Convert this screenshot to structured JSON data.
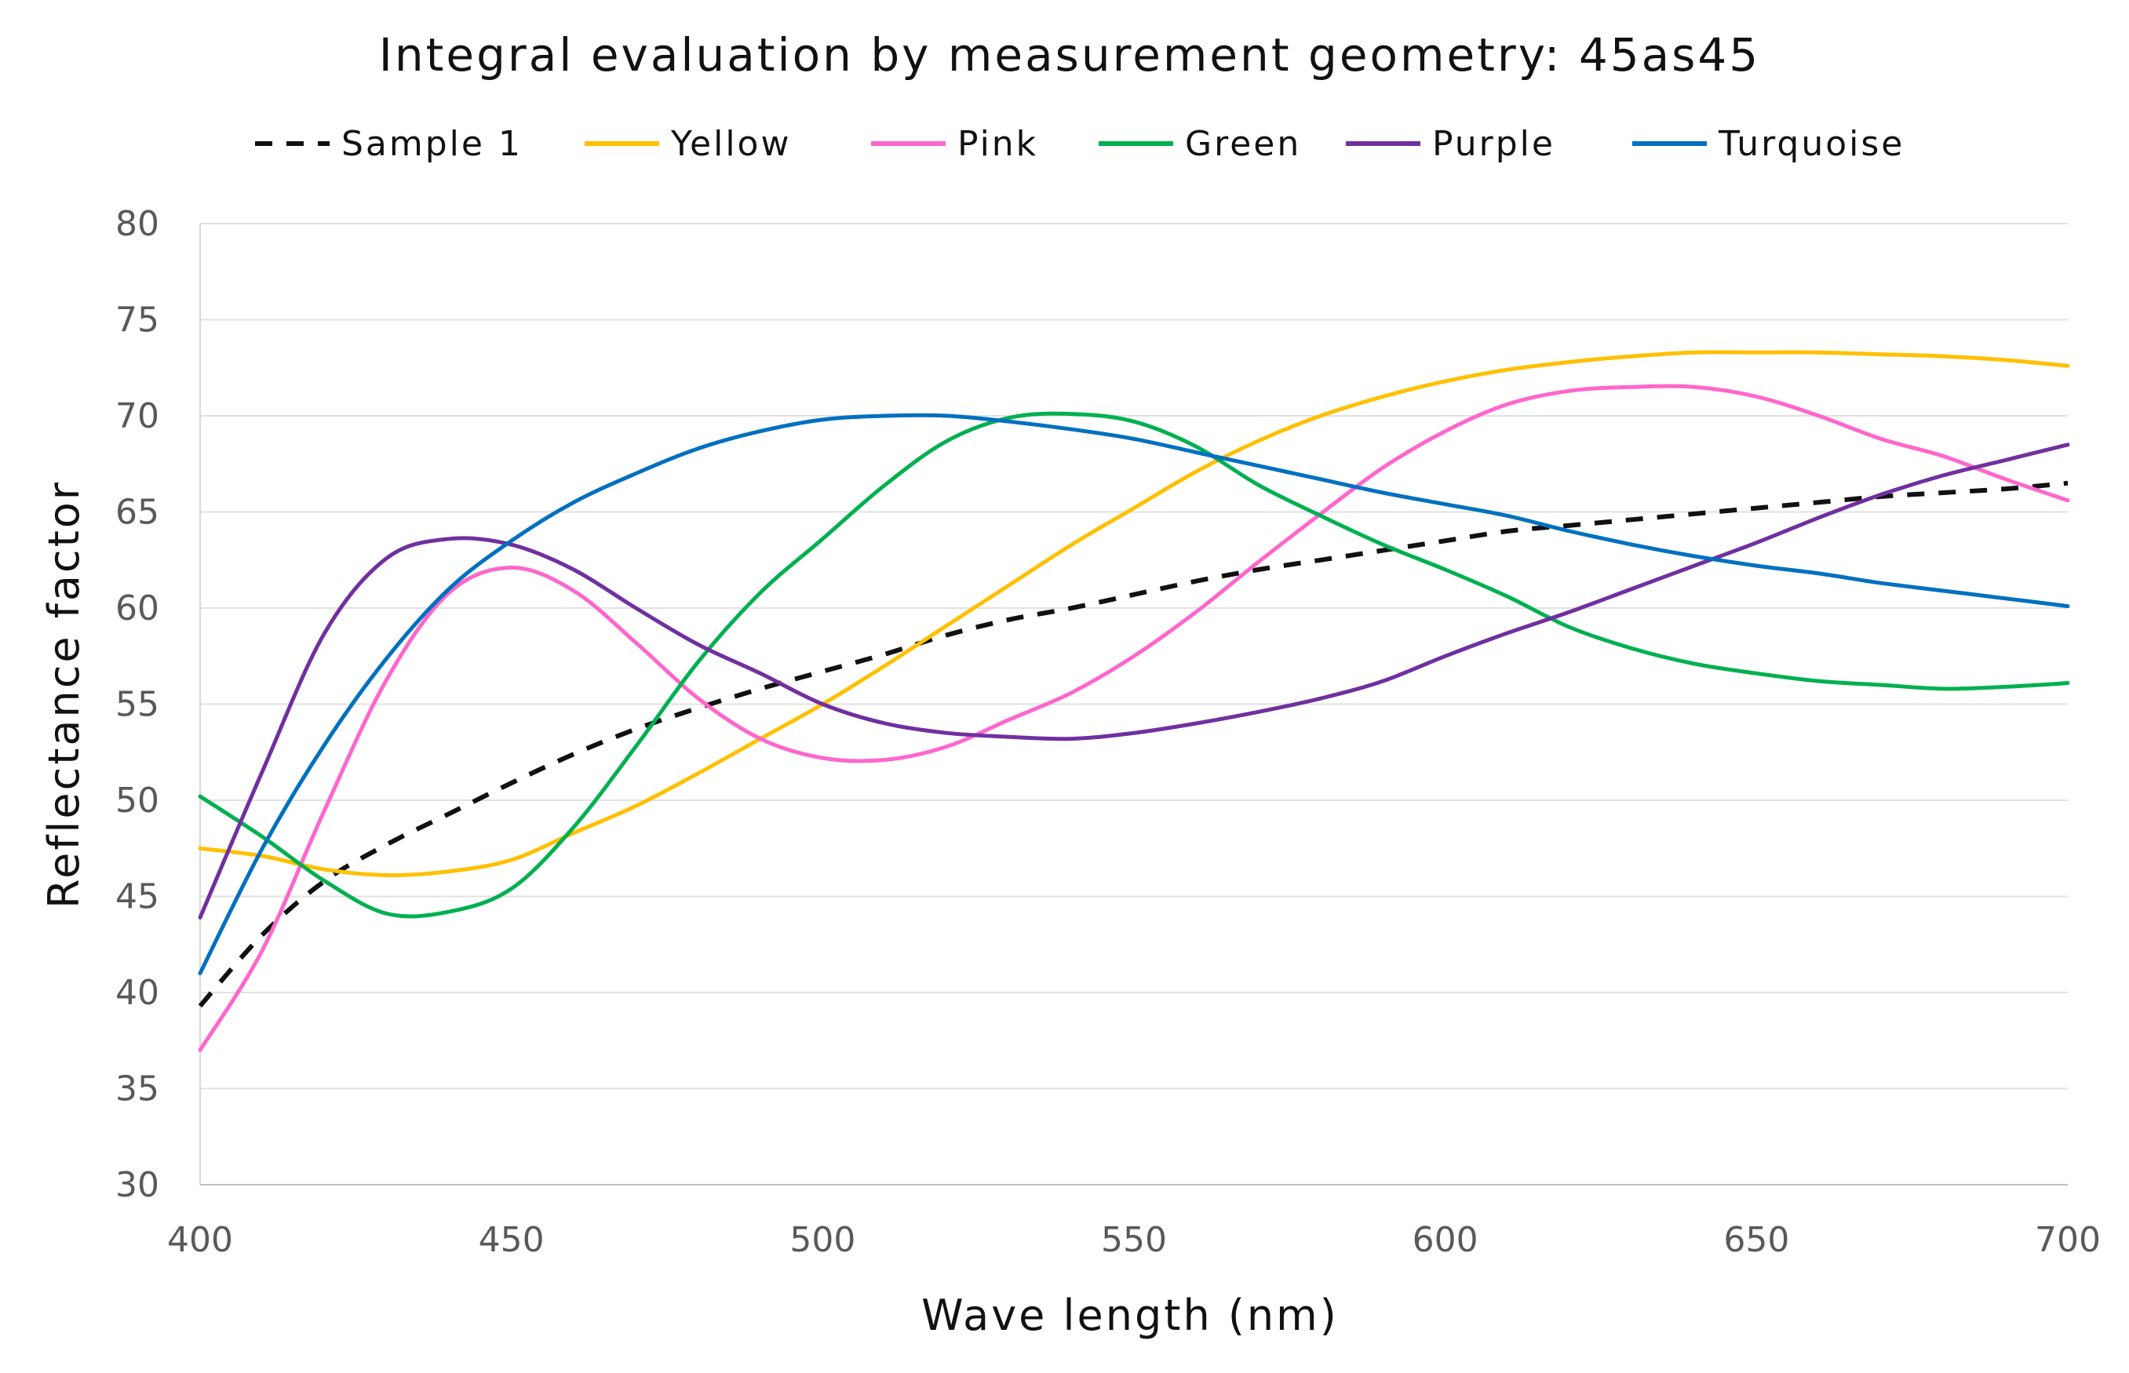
{
  "chart_data": {
    "type": "line",
    "title": "Integral evaluation by measurement geometry: 45as45",
    "xlabel": "Wave length (nm)",
    "ylabel": "Reflectance factor",
    "xlim": [
      400,
      700
    ],
    "ylim": [
      30,
      80
    ],
    "x_ticks": [
      400,
      450,
      500,
      550,
      600,
      650,
      700
    ],
    "y_ticks": [
      30,
      35,
      40,
      45,
      50,
      55,
      60,
      65,
      70,
      75,
      80
    ],
    "grid": "horizontal",
    "legend_position": "top",
    "x": [
      400,
      410,
      420,
      430,
      440,
      450,
      460,
      470,
      480,
      490,
      500,
      510,
      520,
      530,
      540,
      550,
      560,
      570,
      580,
      590,
      600,
      610,
      620,
      630,
      640,
      650,
      660,
      670,
      680,
      690,
      700
    ],
    "series": [
      {
        "name": "Sample 1",
        "color": "#111111",
        "dash": true,
        "values": [
          39.3,
          43.0,
          45.8,
          47.7,
          49.3,
          50.9,
          52.4,
          53.7,
          54.8,
          55.8,
          56.7,
          57.6,
          58.6,
          59.4,
          60.0,
          60.7,
          61.4,
          62.0,
          62.5,
          63.0,
          63.5,
          64.0,
          64.3,
          64.6,
          64.9,
          65.2,
          65.5,
          65.8,
          66.0,
          66.2,
          66.5
        ]
      },
      {
        "name": "Yellow",
        "color": "#FFC000",
        "dash": false,
        "values": [
          47.5,
          47.1,
          46.4,
          46.1,
          46.3,
          46.9,
          48.3,
          49.7,
          51.4,
          53.2,
          55.0,
          57.0,
          59.1,
          61.2,
          63.3,
          65.2,
          67.1,
          68.7,
          70.0,
          71.0,
          71.8,
          72.4,
          72.8,
          73.1,
          73.3,
          73.3,
          73.3,
          73.2,
          73.1,
          72.9,
          72.6
        ]
      },
      {
        "name": "Pink",
        "color": "#FF66CC",
        "dash": false,
        "values": [
          37.0,
          42.2,
          49.5,
          56.3,
          60.8,
          62.1,
          60.9,
          58.2,
          55.3,
          53.2,
          52.2,
          52.1,
          52.8,
          54.2,
          55.6,
          57.5,
          59.8,
          62.4,
          64.9,
          67.3,
          69.2,
          70.6,
          71.3,
          71.5,
          71.5,
          71.0,
          70.0,
          68.8,
          67.9,
          66.7,
          65.6
        ]
      },
      {
        "name": "Green",
        "color": "#00B050",
        "dash": false,
        "values": [
          50.2,
          48.1,
          45.8,
          44.1,
          44.2,
          45.4,
          48.6,
          52.8,
          57.2,
          60.8,
          63.6,
          66.4,
          68.7,
          69.9,
          70.1,
          69.7,
          68.4,
          66.4,
          64.8,
          63.3,
          62.0,
          60.6,
          59.0,
          57.9,
          57.1,
          56.6,
          56.2,
          56.0,
          55.8,
          55.9,
          56.1
        ]
      },
      {
        "name": "Purple",
        "color": "#7030A0",
        "dash": false,
        "values": [
          43.9,
          51.5,
          58.7,
          62.6,
          63.6,
          63.3,
          62.0,
          60.0,
          58.1,
          56.6,
          55.0,
          54.0,
          53.5,
          53.3,
          53.2,
          53.5,
          54.0,
          54.6,
          55.3,
          56.2,
          57.5,
          58.7,
          59.8,
          61.0,
          62.2,
          63.4,
          64.7,
          65.9,
          66.9,
          67.7,
          68.5
        ]
      },
      {
        "name": "Turquoise",
        "color": "#0070C0",
        "dash": false,
        "values": [
          41.0,
          47.5,
          52.9,
          57.4,
          61.0,
          63.5,
          65.5,
          67.0,
          68.3,
          69.2,
          69.8,
          70.0,
          70.0,
          69.7,
          69.3,
          68.8,
          68.1,
          67.4,
          66.7,
          66.0,
          65.4,
          64.8,
          64.0,
          63.3,
          62.7,
          62.2,
          61.8,
          61.3,
          60.9,
          60.5,
          60.1
        ]
      }
    ]
  }
}
